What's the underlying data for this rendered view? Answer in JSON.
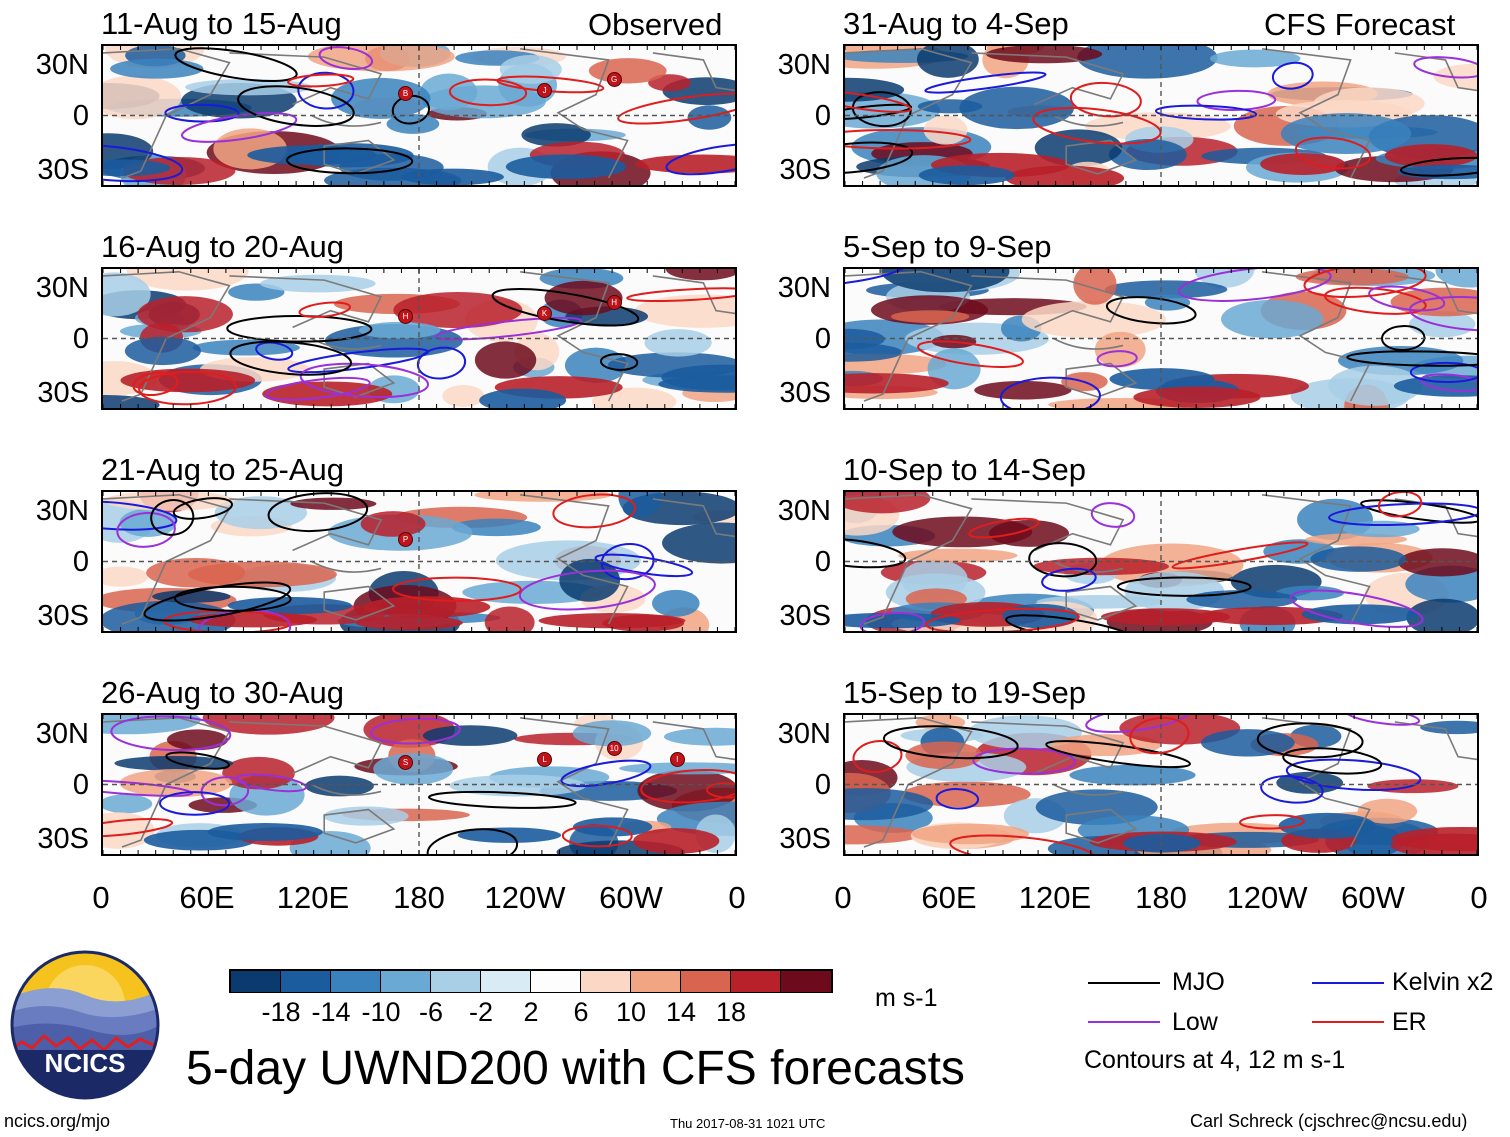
{
  "header": {
    "left_label": "Observed",
    "right_label": "CFS Forecast"
  },
  "latitude_labels": [
    "30N",
    "0",
    "30S"
  ],
  "longitude_labels": [
    "0",
    "60E",
    "120E",
    "180",
    "120W",
    "60W",
    "0"
  ],
  "observed_panels": [
    {
      "title": "11-Aug to 15-Aug",
      "storm_markers": [
        "B",
        "J",
        "G"
      ]
    },
    {
      "title": "16-Aug to 20-Aug",
      "storm_markers": [
        "H",
        "K",
        "H"
      ]
    },
    {
      "title": "21-Aug to 25-Aug",
      "storm_markers": [
        "P"
      ]
    },
    {
      "title": "26-Aug to 30-Aug",
      "storm_markers": [
        "S",
        "L",
        "10",
        "I"
      ]
    }
  ],
  "forecast_panels": [
    {
      "title": "31-Aug to 4-Sep"
    },
    {
      "title": "5-Sep to 9-Sep"
    },
    {
      "title": "10-Sep to 14-Sep"
    },
    {
      "title": "15-Sep to 19-Sep"
    }
  ],
  "colorbar": {
    "unit": "m s-1",
    "tick_labels": [
      "-18",
      "-14",
      "-10",
      "-6",
      "-2",
      "2",
      "6",
      "10",
      "14",
      "18"
    ],
    "colors": [
      "#0b3b6e",
      "#1b5c9e",
      "#3a82bd",
      "#6aa9d4",
      "#a8cfe6",
      "#d9ebf5",
      "#fdfdfd",
      "#fbd8c6",
      "#f1a583",
      "#d9644f",
      "#b8202a",
      "#6d0a1c"
    ]
  },
  "legend": {
    "items": [
      {
        "label": "MJO",
        "color": "#000000"
      },
      {
        "label": "Kelvin x2",
        "color": "#1a1adb"
      },
      {
        "label": "Low",
        "color": "#9b30d9"
      },
      {
        "label": "ER",
        "color": "#e01c1c"
      }
    ],
    "note": "Contours at 4, 12 m s-1"
  },
  "logo": {
    "text": "NCICS"
  },
  "main_title": "5-day UWND200 with CFS forecasts",
  "footer": {
    "url": "ncics.org/mjo",
    "timestamp": "Thu 2017-08-31 1021 UTC",
    "credit": "Carl Schreck (cjschrec@ncsu.edu)"
  }
}
